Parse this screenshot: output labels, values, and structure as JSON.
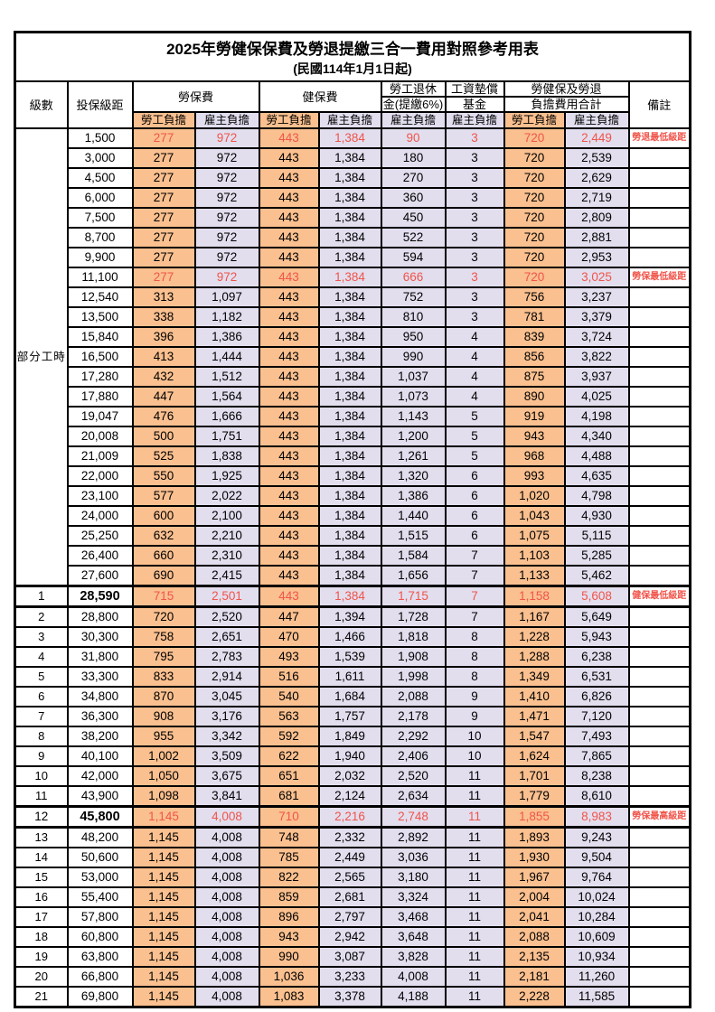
{
  "title": "2025年勞健保保費及勞退提繳三合一費用對照參考用表",
  "subtitle": "(民國114年1月1日起)",
  "colors": {
    "employee_bg": "#fac08f",
    "employer_bg": "#e2deee",
    "highlight_text": "#f0544a",
    "border": "#000000"
  },
  "header": {
    "level": "級數",
    "bracket": "投保級距",
    "labor_insurance": "勞保費",
    "health_insurance": "健保費",
    "pension_line1": "勞工退休",
    "pension_line2": "金(提繳6%)",
    "wage_fund_line1": "工資墊償",
    "wage_fund_line2": "基金",
    "total_line1": "勞健保及勞退",
    "total_line2": "負擔費用合計",
    "remark": "備註",
    "employee": "勞工負擔",
    "employer": "雇主負擔"
  },
  "part_time_label": "部分工時",
  "rows": [
    {
      "level": "",
      "bracket": "1,500",
      "values": [
        "277",
        "972",
        "443",
        "1,384",
        "90",
        "3",
        "720",
        "2,449"
      ],
      "remark": "勞退最低級距",
      "highlight": true
    },
    {
      "level": "",
      "bracket": "3,000",
      "values": [
        "277",
        "972",
        "443",
        "1,384",
        "180",
        "3",
        "720",
        "2,539"
      ],
      "remark": ""
    },
    {
      "level": "",
      "bracket": "4,500",
      "values": [
        "277",
        "972",
        "443",
        "1,384",
        "270",
        "3",
        "720",
        "2,629"
      ],
      "remark": ""
    },
    {
      "level": "",
      "bracket": "6,000",
      "values": [
        "277",
        "972",
        "443",
        "1,384",
        "360",
        "3",
        "720",
        "2,719"
      ],
      "remark": ""
    },
    {
      "level": "",
      "bracket": "7,500",
      "values": [
        "277",
        "972",
        "443",
        "1,384",
        "450",
        "3",
        "720",
        "2,809"
      ],
      "remark": ""
    },
    {
      "level": "",
      "bracket": "8,700",
      "values": [
        "277",
        "972",
        "443",
        "1,384",
        "522",
        "3",
        "720",
        "2,881"
      ],
      "remark": ""
    },
    {
      "level": "",
      "bracket": "9,900",
      "values": [
        "277",
        "972",
        "443",
        "1,384",
        "594",
        "3",
        "720",
        "2,953"
      ],
      "remark": ""
    },
    {
      "level": "",
      "bracket": "11,100",
      "values": [
        "277",
        "972",
        "443",
        "1,384",
        "666",
        "3",
        "720",
        "3,025"
      ],
      "remark": "勞保最低級距",
      "highlight": true
    },
    {
      "level": "",
      "bracket": "12,540",
      "values": [
        "313",
        "1,097",
        "443",
        "1,384",
        "752",
        "3",
        "756",
        "3,237"
      ],
      "remark": ""
    },
    {
      "level": "",
      "bracket": "13,500",
      "values": [
        "338",
        "1,182",
        "443",
        "1,384",
        "810",
        "3",
        "781",
        "3,379"
      ],
      "remark": ""
    },
    {
      "level": "",
      "bracket": "15,840",
      "values": [
        "396",
        "1,386",
        "443",
        "1,384",
        "950",
        "4",
        "839",
        "3,724"
      ],
      "remark": ""
    },
    {
      "level": "",
      "bracket": "16,500",
      "values": [
        "413",
        "1,444",
        "443",
        "1,384",
        "990",
        "4",
        "856",
        "3,822"
      ],
      "remark": ""
    },
    {
      "level": "",
      "bracket": "17,280",
      "values": [
        "432",
        "1,512",
        "443",
        "1,384",
        "1,037",
        "4",
        "875",
        "3,937"
      ],
      "remark": ""
    },
    {
      "level": "",
      "bracket": "17,880",
      "values": [
        "447",
        "1,564",
        "443",
        "1,384",
        "1,073",
        "4",
        "890",
        "4,025"
      ],
      "remark": ""
    },
    {
      "level": "",
      "bracket": "19,047",
      "values": [
        "476",
        "1,666",
        "443",
        "1,384",
        "1,143",
        "5",
        "919",
        "4,198"
      ],
      "remark": ""
    },
    {
      "level": "",
      "bracket": "20,008",
      "values": [
        "500",
        "1,751",
        "443",
        "1,384",
        "1,200",
        "5",
        "943",
        "4,340"
      ],
      "remark": ""
    },
    {
      "level": "",
      "bracket": "21,009",
      "values": [
        "525",
        "1,838",
        "443",
        "1,384",
        "1,261",
        "5",
        "968",
        "4,488"
      ],
      "remark": ""
    },
    {
      "level": "",
      "bracket": "22,000",
      "values": [
        "550",
        "1,925",
        "443",
        "1,384",
        "1,320",
        "6",
        "993",
        "4,635"
      ],
      "remark": ""
    },
    {
      "level": "",
      "bracket": "23,100",
      "values": [
        "577",
        "2,022",
        "443",
        "1,384",
        "1,386",
        "6",
        "1,020",
        "4,798"
      ],
      "remark": ""
    },
    {
      "level": "",
      "bracket": "24,000",
      "values": [
        "600",
        "2,100",
        "443",
        "1,384",
        "1,440",
        "6",
        "1,043",
        "4,930"
      ],
      "remark": ""
    },
    {
      "level": "",
      "bracket": "25,250",
      "values": [
        "632",
        "2,210",
        "443",
        "1,384",
        "1,515",
        "6",
        "1,075",
        "5,115"
      ],
      "remark": ""
    },
    {
      "level": "",
      "bracket": "26,400",
      "values": [
        "660",
        "2,310",
        "443",
        "1,384",
        "1,584",
        "7",
        "1,103",
        "5,285"
      ],
      "remark": ""
    },
    {
      "level": "",
      "bracket": "27,600",
      "values": [
        "690",
        "2,415",
        "443",
        "1,384",
        "1,656",
        "7",
        "1,133",
        "5,462"
      ],
      "remark": ""
    },
    {
      "level": "1",
      "bracket": "28,590",
      "values": [
        "715",
        "2,501",
        "443",
        "1,384",
        "1,715",
        "7",
        "1,158",
        "5,608"
      ],
      "remark": "健保最低級距",
      "highlight": true,
      "bold": true,
      "thick": true
    },
    {
      "level": "2",
      "bracket": "28,800",
      "values": [
        "720",
        "2,520",
        "447",
        "1,394",
        "1,728",
        "7",
        "1,167",
        "5,649"
      ],
      "remark": ""
    },
    {
      "level": "3",
      "bracket": "30,300",
      "values": [
        "758",
        "2,651",
        "470",
        "1,466",
        "1,818",
        "8",
        "1,228",
        "5,943"
      ],
      "remark": ""
    },
    {
      "level": "4",
      "bracket": "31,800",
      "values": [
        "795",
        "2,783",
        "493",
        "1,539",
        "1,908",
        "8",
        "1,288",
        "6,238"
      ],
      "remark": ""
    },
    {
      "level": "5",
      "bracket": "33,300",
      "values": [
        "833",
        "2,914",
        "516",
        "1,611",
        "1,998",
        "8",
        "1,349",
        "6,531"
      ],
      "remark": ""
    },
    {
      "level": "6",
      "bracket": "34,800",
      "values": [
        "870",
        "3,045",
        "540",
        "1,684",
        "2,088",
        "9",
        "1,410",
        "6,826"
      ],
      "remark": ""
    },
    {
      "level": "7",
      "bracket": "36,300",
      "values": [
        "908",
        "3,176",
        "563",
        "1,757",
        "2,178",
        "9",
        "1,471",
        "7,120"
      ],
      "remark": ""
    },
    {
      "level": "8",
      "bracket": "38,200",
      "values": [
        "955",
        "3,342",
        "592",
        "1,849",
        "2,292",
        "10",
        "1,547",
        "7,493"
      ],
      "remark": ""
    },
    {
      "level": "9",
      "bracket": "40,100",
      "values": [
        "1,002",
        "3,509",
        "622",
        "1,940",
        "2,406",
        "10",
        "1,624",
        "7,865"
      ],
      "remark": ""
    },
    {
      "level": "10",
      "bracket": "42,000",
      "values": [
        "1,050",
        "3,675",
        "651",
        "2,032",
        "2,520",
        "11",
        "1,701",
        "8,238"
      ],
      "remark": ""
    },
    {
      "level": "11",
      "bracket": "43,900",
      "values": [
        "1,098",
        "3,841",
        "681",
        "2,124",
        "2,634",
        "11",
        "1,779",
        "8,610"
      ],
      "remark": ""
    },
    {
      "level": "12",
      "bracket": "45,800",
      "values": [
        "1,145",
        "4,008",
        "710",
        "2,216",
        "2,748",
        "11",
        "1,855",
        "8,983"
      ],
      "remark": "勞保最高級距",
      "highlight": true,
      "bold": true,
      "thick": true
    },
    {
      "level": "13",
      "bracket": "48,200",
      "values": [
        "1,145",
        "4,008",
        "748",
        "2,332",
        "2,892",
        "11",
        "1,893",
        "9,243"
      ],
      "remark": ""
    },
    {
      "level": "14",
      "bracket": "50,600",
      "values": [
        "1,145",
        "4,008",
        "785",
        "2,449",
        "3,036",
        "11",
        "1,930",
        "9,504"
      ],
      "remark": ""
    },
    {
      "level": "15",
      "bracket": "53,000",
      "values": [
        "1,145",
        "4,008",
        "822",
        "2,565",
        "3,180",
        "11",
        "1,967",
        "9,764"
      ],
      "remark": ""
    },
    {
      "level": "16",
      "bracket": "55,400",
      "values": [
        "1,145",
        "4,008",
        "859",
        "2,681",
        "3,324",
        "11",
        "2,004",
        "10,024"
      ],
      "remark": ""
    },
    {
      "level": "17",
      "bracket": "57,800",
      "values": [
        "1,145",
        "4,008",
        "896",
        "2,797",
        "3,468",
        "11",
        "2,041",
        "10,284"
      ],
      "remark": ""
    },
    {
      "level": "18",
      "bracket": "60,800",
      "values": [
        "1,145",
        "4,008",
        "943",
        "2,942",
        "3,648",
        "11",
        "2,088",
        "10,609"
      ],
      "remark": ""
    },
    {
      "level": "19",
      "bracket": "63,800",
      "values": [
        "1,145",
        "4,008",
        "990",
        "3,087",
        "3,828",
        "11",
        "2,135",
        "10,934"
      ],
      "remark": ""
    },
    {
      "level": "20",
      "bracket": "66,800",
      "values": [
        "1,145",
        "4,008",
        "1,036",
        "3,233",
        "4,008",
        "11",
        "2,181",
        "11,260"
      ],
      "remark": ""
    },
    {
      "level": "21",
      "bracket": "69,800",
      "values": [
        "1,145",
        "4,008",
        "1,083",
        "3,378",
        "4,188",
        "11",
        "2,228",
        "11,585"
      ],
      "remark": ""
    }
  ]
}
